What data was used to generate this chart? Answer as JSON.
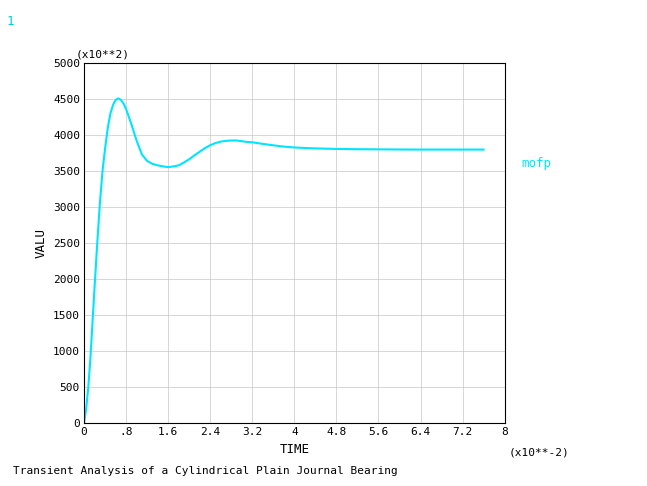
{
  "title": "Transient Analysis of a Cylindrical Plain Journal Bearing",
  "ylabel": "VALU",
  "xlabel": "TIME",
  "y_scale_label": "(x10**2)",
  "x_scale_label": "(x10**-2)",
  "legend_label": "mofp",
  "line_color": "#00e5ff",
  "background_color": "#ffffff",
  "grid_color": "#c8c8c8",
  "xlim": [
    0,
    8
  ],
  "ylim": [
    0,
    5000
  ],
  "xticks": [
    0,
    0.8,
    1.6,
    2.4,
    3.2,
    4.0,
    4.8,
    5.6,
    6.4,
    7.2,
    8.0
  ],
  "xticklabels": [
    "0",
    ".8",
    "1.6",
    "2.4",
    "3.2",
    "4",
    "4.8",
    "5.6",
    "6.4",
    "7.2",
    "8"
  ],
  "yticks": [
    0,
    500,
    1000,
    1500,
    2000,
    2500,
    3000,
    3500,
    4000,
    4500,
    5000
  ],
  "curve_x": [
    0.0,
    0.04,
    0.08,
    0.12,
    0.16,
    0.2,
    0.25,
    0.3,
    0.35,
    0.4,
    0.45,
    0.5,
    0.55,
    0.6,
    0.65,
    0.7,
    0.75,
    0.8,
    0.9,
    1.0,
    1.1,
    1.2,
    1.3,
    1.4,
    1.5,
    1.6,
    1.7,
    1.8,
    1.9,
    2.0,
    2.1,
    2.2,
    2.3,
    2.4,
    2.5,
    2.6,
    2.7,
    2.8,
    2.9,
    3.0,
    3.1,
    3.2,
    3.4,
    3.6,
    3.8,
    4.0,
    4.4,
    4.8,
    5.2,
    5.6,
    6.0,
    6.4,
    6.8,
    7.2,
    7.6
  ],
  "curve_y": [
    0,
    200,
    500,
    900,
    1400,
    1900,
    2500,
    3050,
    3500,
    3820,
    4100,
    4300,
    4420,
    4490,
    4510,
    4490,
    4440,
    4360,
    4150,
    3920,
    3730,
    3640,
    3600,
    3580,
    3565,
    3555,
    3565,
    3580,
    3620,
    3665,
    3720,
    3770,
    3820,
    3860,
    3890,
    3910,
    3920,
    3925,
    3925,
    3915,
    3905,
    3900,
    3878,
    3858,
    3840,
    3828,
    3815,
    3808,
    3804,
    3802,
    3800,
    3799,
    3799,
    3799,
    3799
  ],
  "corner_label": "1",
  "font_family": "monospace"
}
